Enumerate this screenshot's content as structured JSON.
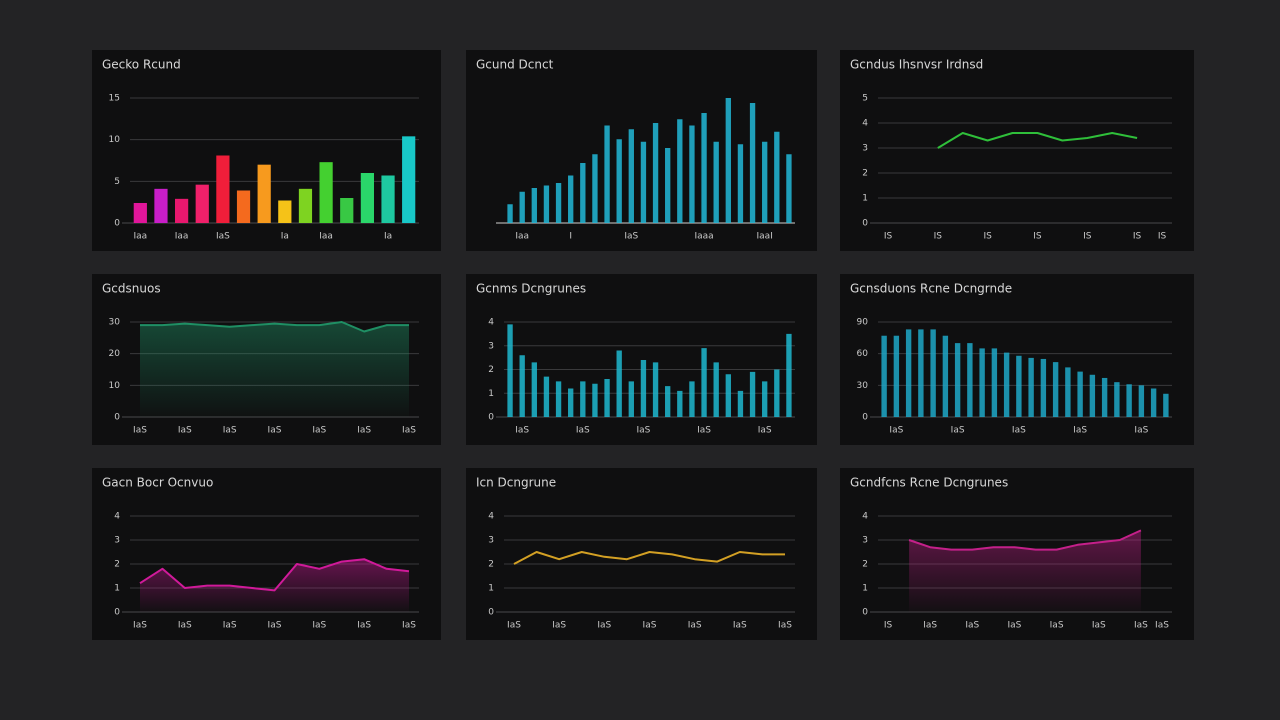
{
  "chart_data": [
    {
      "type": "bar",
      "title": "Gecko Rcund",
      "categories": [
        "Iaa",
        null,
        "Iaa",
        null,
        "IaS",
        null,
        null,
        "Ia",
        null,
        "Iaa",
        null,
        null,
        "Ia",
        null
      ],
      "values": [
        2.4,
        4.1,
        2.9,
        4.6,
        8.1,
        3.9,
        7.0,
        2.7,
        4.1,
        7.3,
        3.0,
        6.0,
        5.7,
        10.4
      ],
      "colors": [
        "#e0169a",
        "#c81ec8",
        "#e8186e",
        "#f0206a",
        "#f01e3a",
        "#f46a1e",
        "#f79a1e",
        "#f5c218",
        "#7ed321",
        "#44d030",
        "#38c844",
        "#2ad66a",
        "#1ec8a0",
        "#18c8c8"
      ],
      "ylim": [
        0,
        15
      ],
      "yticks": [
        0,
        5,
        10,
        15
      ],
      "grid": true
    },
    {
      "type": "bar",
      "title": "Gcund Dcnct",
      "categories": [
        null,
        "Iaa",
        null,
        null,
        null,
        "I",
        null,
        null,
        null,
        null,
        "IaS",
        null,
        null,
        null,
        null,
        null,
        "Iaaa",
        null,
        null,
        null,
        null,
        "IaaI",
        null,
        null
      ],
      "values": [
        15,
        25,
        28,
        30,
        32,
        38,
        48,
        55,
        78,
        67,
        75,
        65,
        80,
        60,
        83,
        78,
        88,
        65,
        100,
        63,
        96,
        65,
        73,
        55
      ],
      "color": "#22b8d8",
      "grid": false
    },
    {
      "type": "line",
      "title": "Gcndus Ihsnvsr Irdnsd",
      "categories": [
        "IS",
        null,
        "IS",
        null,
        "IS",
        null,
        "IS",
        null,
        "IS",
        null,
        "IS",
        "IS"
      ],
      "values": [
        null,
        null,
        3.0,
        3.6,
        3.3,
        3.6,
        3.6,
        3.3,
        3.4,
        3.6,
        3.4,
        null
      ],
      "color": "#2fbf3a",
      "ylim": [
        0,
        5
      ],
      "yticks": [
        0,
        1,
        2,
        3,
        4,
        5
      ],
      "grid": true
    },
    {
      "type": "area",
      "title": "Gcdsnuos",
      "categories": [
        "IaS",
        null,
        "IaS",
        null,
        "IaS",
        null,
        "IaS",
        null,
        "IaS",
        null,
        "IaS",
        null,
        "IaS"
      ],
      "values": [
        29,
        29,
        29.5,
        29,
        28.5,
        29,
        29.5,
        29,
        29,
        30,
        27,
        29,
        29
      ],
      "color": "#1f8f64",
      "ylim": [
        0,
        30
      ],
      "yticks": [
        0,
        10,
        20,
        30
      ],
      "grid": true
    },
    {
      "type": "bar",
      "title": "Gcnms Dcngrunes",
      "categories": [
        null,
        "IaS",
        null,
        null,
        null,
        null,
        "IaS",
        null,
        null,
        null,
        null,
        "IaS",
        null,
        null,
        null,
        null,
        "IaS",
        null,
        null,
        null,
        null,
        "IaS",
        null,
        null
      ],
      "values": [
        3.9,
        2.6,
        2.3,
        1.7,
        1.5,
        1.2,
        1.5,
        1.4,
        1.6,
        2.8,
        1.5,
        2.4,
        2.3,
        1.3,
        1.1,
        1.5,
        2.9,
        2.3,
        1.8,
        1.1,
        1.9,
        1.5,
        2.0,
        3.5
      ],
      "color": "#1fb8d0",
      "ylim": [
        0,
        4
      ],
      "yticks": [
        0,
        1,
        2,
        3,
        4
      ],
      "grid": true
    },
    {
      "type": "bar",
      "title": "Gcnsduons Rcne Dcngrnde",
      "categories": [
        null,
        "IaS",
        null,
        null,
        null,
        null,
        "IaS",
        null,
        null,
        null,
        null,
        "IaS",
        null,
        null,
        null,
        null,
        "IaS",
        null,
        null,
        null,
        null,
        "IaS",
        null,
        null
      ],
      "values": [
        77,
        77,
        83,
        83,
        83,
        77,
        70,
        70,
        65,
        65,
        61,
        58,
        56,
        55,
        52,
        47,
        43,
        40,
        37,
        33,
        31,
        30,
        27,
        22
      ],
      "color": "#1fa8c8",
      "ylim": [
        0,
        90
      ],
      "yticks": [
        0,
        30,
        60,
        90
      ],
      "grid": true
    },
    {
      "type": "area",
      "title": "Gacn Bocr Ocnvuo",
      "categories": [
        "IaS",
        null,
        "IaS",
        null,
        "IaS",
        null,
        "IaS",
        null,
        "IaS",
        null,
        "IaS",
        null,
        "IaS"
      ],
      "values": [
        1.2,
        1.8,
        1.0,
        1.1,
        1.1,
        1.0,
        0.9,
        2.0,
        1.8,
        2.1,
        2.2,
        1.8,
        1.7
      ],
      "color": "#d01a9a",
      "ylim": [
        0,
        4
      ],
      "yticks": [
        0,
        1,
        2,
        3,
        4
      ],
      "grid": true
    },
    {
      "type": "line",
      "title": "Icn Dcngrune",
      "categories": [
        "IaS",
        null,
        "IaS",
        null,
        "IaS",
        null,
        "IaS",
        null,
        "IaS",
        null,
        "IaS",
        null,
        "IaS"
      ],
      "values": [
        2.0,
        2.5,
        2.2,
        2.5,
        2.3,
        2.2,
        2.5,
        2.4,
        2.2,
        2.1,
        2.5,
        2.4,
        2.4
      ],
      "color": "#d3a024",
      "ylim": [
        0,
        4
      ],
      "yticks": [
        0,
        1,
        2,
        3,
        4
      ],
      "grid": true
    },
    {
      "type": "area",
      "title": "Gcndfcns Rcne Dcngrunes",
      "categories": [
        "IS",
        null,
        "IaS",
        null,
        "IaS",
        null,
        "IaS",
        null,
        "IaS",
        null,
        "IaS",
        null,
        "IaS",
        "IaS"
      ],
      "values": [
        null,
        3.0,
        2.7,
        2.6,
        2.6,
        2.7,
        2.7,
        2.6,
        2.6,
        2.8,
        2.9,
        3.0,
        3.4,
        null
      ],
      "color": "#c4208a",
      "ylim": [
        0,
        4
      ],
      "yticks": [
        0,
        1,
        2,
        3,
        4
      ],
      "grid": true
    }
  ]
}
